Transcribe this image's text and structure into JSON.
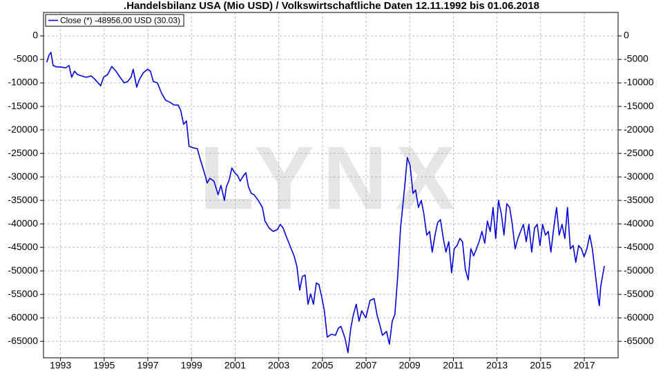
{
  "chart_data": {
    "type": "line",
    "title": ".Handelsbilanz USA (Mio USD) / Volkswirtschaftliche Daten 12.11.1992 bis 01.06.2018",
    "watermark": "LYNX",
    "legend_position": "top-left",
    "grid": true,
    "xlim": [
      1992.72,
      2019.05
    ],
    "ylim": [
      -68500,
      5000
    ],
    "yticks": [
      0,
      -5000,
      -10000,
      -15000,
      -20000,
      -25000,
      -30000,
      -35000,
      -40000,
      -45000,
      -50000,
      -55000,
      -60000,
      -65000
    ],
    "xticks": [
      {
        "value": 1993.5,
        "label": "1993"
      },
      {
        "value": 1995.5,
        "label": "1995"
      },
      {
        "value": 1997.5,
        "label": "1997"
      },
      {
        "value": 1999.5,
        "label": "1999"
      },
      {
        "value": 2001.5,
        "label": "2001"
      },
      {
        "value": 2003.5,
        "label": "2003"
      },
      {
        "value": 2005.5,
        "label": "2005"
      },
      {
        "value": 2007.5,
        "label": "2007"
      },
      {
        "value": 2009.5,
        "label": "2009"
      },
      {
        "value": 2011.5,
        "label": "2011"
      },
      {
        "value": 2013.5,
        "label": "2013"
      },
      {
        "value": 2015.5,
        "label": "2015"
      },
      {
        "value": 2017.5,
        "label": "2017"
      }
    ],
    "x": [
      1992.87,
      1992.97,
      1993.06,
      1993.16,
      1993.32,
      1993.51,
      1993.73,
      1993.89,
      1994.01,
      1994.14,
      1994.27,
      1994.46,
      1994.68,
      1994.9,
      1995.09,
      1995.34,
      1995.47,
      1995.66,
      1995.85,
      1996.04,
      1996.23,
      1996.42,
      1996.58,
      1996.73,
      1996.83,
      1996.99,
      1997.11,
      1997.3,
      1997.49,
      1997.62,
      1997.75,
      1997.94,
      1998.13,
      1998.32,
      1998.51,
      1998.7,
      1998.89,
      1999.01,
      1999.14,
      1999.27,
      1999.39,
      1999.58,
      1999.77,
      1999.9,
      2000.09,
      2000.22,
      2000.34,
      2000.53,
      2000.72,
      2000.85,
      2001.01,
      2001.1,
      2001.23,
      2001.35,
      2001.48,
      2001.61,
      2001.73,
      2001.86,
      2001.99,
      2002.11,
      2002.24,
      2002.37,
      2002.56,
      2002.75,
      2002.87,
      2003.06,
      2003.25,
      2003.44,
      2003.57,
      2003.7,
      2003.82,
      2004.01,
      2004.2,
      2004.33,
      2004.46,
      2004.58,
      2004.71,
      2004.84,
      2004.96,
      2005.09,
      2005.22,
      2005.34,
      2005.47,
      2005.59,
      2005.72,
      2005.91,
      2006.1,
      2006.23,
      2006.35,
      2006.54,
      2006.67,
      2006.8,
      2006.92,
      2007.05,
      2007.18,
      2007.3,
      2007.49,
      2007.68,
      2007.87,
      2008.0,
      2008.13,
      2008.25,
      2008.44,
      2008.57,
      2008.7,
      2008.82,
      2008.95,
      2009.08,
      2009.27,
      2009.39,
      2009.52,
      2009.65,
      2009.77,
      2009.9,
      2010.03,
      2010.15,
      2010.28,
      2010.41,
      2010.53,
      2010.66,
      2010.78,
      2010.91,
      2011.04,
      2011.16,
      2011.29,
      2011.42,
      2011.54,
      2011.67,
      2011.8,
      2011.92,
      2012.05,
      2012.18,
      2012.3,
      2012.43,
      2012.56,
      2012.68,
      2012.81,
      2012.94,
      2013.06,
      2013.19,
      2013.32,
      2013.44,
      2013.57,
      2013.7,
      2013.82,
      2013.95,
      2014.08,
      2014.2,
      2014.33,
      2014.46,
      2014.58,
      2014.71,
      2014.84,
      2014.96,
      2015.09,
      2015.22,
      2015.34,
      2015.47,
      2015.59,
      2015.72,
      2015.85,
      2015.97,
      2016.1,
      2016.23,
      2016.35,
      2016.48,
      2016.61,
      2016.73,
      2016.86,
      2016.99,
      2017.11,
      2017.24,
      2017.37,
      2017.49,
      2017.62,
      2017.75,
      2017.87,
      2018.0,
      2018.13,
      2018.19,
      2018.25,
      2018.42
    ],
    "series": [
      {
        "name": "Close (*) -48956,00 USD (30.03)",
        "color": "#0000dd",
        "values": [
          -5600,
          -4100,
          -3500,
          -6300,
          -6600,
          -6600,
          -6800,
          -6300,
          -8800,
          -7500,
          -8200,
          -8500,
          -8800,
          -8500,
          -9300,
          -10600,
          -8800,
          -8200,
          -6500,
          -7500,
          -8800,
          -10000,
          -9700,
          -8800,
          -7100,
          -10900,
          -9300,
          -7800,
          -7100,
          -7500,
          -9700,
          -10000,
          -12200,
          -13700,
          -14100,
          -14700,
          -14700,
          -15900,
          -18800,
          -18100,
          -23500,
          -23800,
          -24000,
          -26200,
          -29100,
          -31300,
          -30300,
          -30900,
          -33800,
          -31800,
          -35000,
          -32100,
          -30600,
          -28100,
          -29100,
          -29700,
          -30900,
          -29900,
          -29100,
          -32100,
          -33500,
          -33800,
          -35000,
          -36500,
          -39400,
          -40900,
          -41600,
          -41200,
          -40100,
          -40900,
          -42400,
          -44600,
          -46800,
          -49000,
          -54100,
          -51200,
          -50900,
          -57100,
          -54900,
          -57100,
          -52600,
          -52900,
          -55600,
          -58500,
          -64100,
          -63500,
          -63700,
          -62200,
          -61800,
          -64400,
          -67400,
          -62200,
          -59300,
          -57100,
          -60700,
          -58500,
          -60000,
          -56300,
          -55900,
          -59300,
          -61500,
          -63700,
          -62900,
          -65600,
          -60700,
          -59300,
          -51200,
          -40900,
          -32100,
          -25900,
          -27600,
          -33500,
          -32800,
          -36500,
          -35000,
          -37900,
          -42400,
          -41600,
          -46000,
          -42400,
          -39700,
          -39100,
          -43100,
          -46000,
          -43800,
          -50400,
          -45300,
          -44600,
          -43100,
          -43800,
          -49700,
          -51900,
          -45300,
          -46800,
          -45300,
          -43800,
          -41600,
          -44100,
          -39400,
          -41600,
          -36500,
          -43100,
          -35000,
          -37900,
          -42400,
          -35700,
          -36500,
          -40100,
          -45300,
          -43100,
          -41600,
          -40100,
          -43800,
          -40100,
          -46000,
          -40900,
          -40100,
          -44600,
          -40100,
          -42400,
          -41600,
          -46000,
          -40900,
          -36500,
          -42400,
          -40100,
          -43100,
          -36500,
          -45300,
          -44600,
          -48200,
          -44600,
          -45300,
          -47000,
          -45300,
          -42400,
          -45300,
          -50400,
          -55600,
          -57400,
          -53400,
          -48956
        ]
      }
    ]
  }
}
